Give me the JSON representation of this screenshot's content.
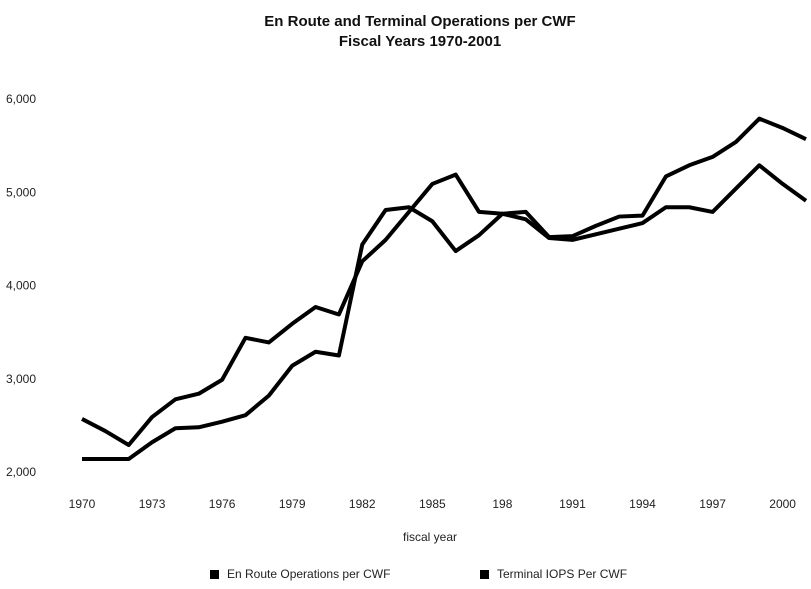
{
  "chart_data": {
    "type": "line",
    "title": "En Route and Terminal Operations per CWF",
    "subtitle": "Fiscal Years 1970-2001",
    "x_label": "fiscal year",
    "categories": [
      "1970",
      null,
      null,
      "1973",
      null,
      null,
      "1976",
      null,
      null,
      "1979",
      null,
      null,
      "1982",
      null,
      null,
      "1985",
      null,
      null,
      "198",
      null,
      null,
      "1991",
      null,
      null,
      "1994",
      null,
      null,
      "1997",
      null,
      null,
      "2000",
      null
    ],
    "series": [
      {
        "name": "En Route Operations per CWF",
        "color": "#000000",
        "values": [
          2580,
          2450,
          2300,
          2600,
          2790,
          2850,
          3000,
          3450,
          3400,
          3600,
          3780,
          3700,
          4270,
          4500,
          4800,
          5100,
          5200,
          4800,
          4780,
          4800,
          4530,
          4540,
          4650,
          4750,
          4760,
          5180,
          5300,
          5390,
          5550,
          5800,
          5700,
          5580
        ]
      },
      {
        "name": "Terminal IOPS Per CWF",
        "color": "#000000",
        "values": [
          2150,
          2150,
          2150,
          2330,
          2480,
          2490,
          2550,
          2620,
          2830,
          3150,
          3300,
          3260,
          4450,
          4820,
          4850,
          4700,
          4380,
          4550,
          4780,
          4720,
          4520,
          4500,
          4560,
          4620,
          4680,
          4850,
          4850,
          4800,
          5050,
          5300,
          5100,
          4920
        ]
      }
    ],
    "ylim": [
      2000,
      6000
    ],
    "yticks": [
      {
        "value": 2000,
        "label": "2,000"
      },
      {
        "value": 3000,
        "label": "3,000"
      },
      {
        "value": 4000,
        "label": "4,000"
      },
      {
        "value": 5000,
        "label": "5,000"
      },
      {
        "value": 6000,
        "label": "6,000"
      }
    ],
    "grid": false,
    "legend": "bottom"
  }
}
